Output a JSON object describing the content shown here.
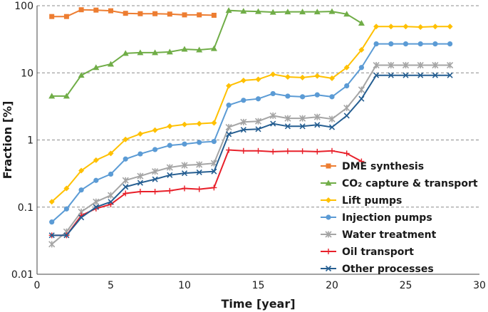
{
  "chart_data": {
    "type": "line",
    "title": "",
    "xlabel": "Time [year]",
    "ylabel": "Fraction [%]",
    "xlim": [
      0,
      30
    ],
    "ylim": [
      0.01,
      100
    ],
    "yscale": "log",
    "x_ticks": [
      "0",
      "5",
      "10",
      "15",
      "20",
      "25",
      "30"
    ],
    "y_ticks": [
      "0.01",
      "0.1",
      "1",
      "10",
      "100"
    ],
    "grid": "horizontal dashed",
    "legend_position": "center-right",
    "series": [
      {
        "name": "DME synthesis",
        "color": "#ed7d31",
        "marker": "square",
        "x": [
          1,
          2,
          3,
          4,
          5,
          6,
          7,
          8,
          9,
          10,
          11,
          12
        ],
        "values": [
          69,
          69,
          87,
          86,
          84,
          77,
          76,
          76,
          75,
          73,
          73,
          72
        ]
      },
      {
        "name": "CO₂ capture & transport",
        "color": "#70ad47",
        "marker": "triangle",
        "x": [
          1,
          2,
          3,
          4,
          5,
          6,
          7,
          8,
          9,
          10,
          11,
          12,
          13,
          14,
          15,
          16,
          17,
          18,
          19,
          20,
          21,
          22
        ],
        "values": [
          4.5,
          4.5,
          9.2,
          12,
          13.5,
          19.5,
          20,
          20,
          20.5,
          22.5,
          22,
          23,
          85,
          83,
          82,
          80,
          81,
          81,
          81,
          82,
          75,
          55
        ]
      },
      {
        "name": "Lift pumps",
        "color": "#ffc000",
        "marker": "diamond",
        "x": [
          1,
          2,
          3,
          4,
          5,
          6,
          7,
          8,
          9,
          10,
          11,
          12,
          13,
          14,
          15,
          16,
          17,
          18,
          19,
          20,
          21,
          22,
          23,
          24,
          25,
          26,
          27,
          28
        ],
        "values": [
          0.12,
          0.19,
          0.35,
          0.5,
          0.63,
          1.02,
          1.23,
          1.4,
          1.6,
          1.7,
          1.75,
          1.8,
          6.4,
          7.7,
          8,
          9.5,
          8.7,
          8.5,
          9,
          8.3,
          12,
          22,
          49,
          49,
          49,
          48,
          49,
          49
        ]
      },
      {
        "name": "Injection pumps",
        "color": "#5b9bd5",
        "marker": "circle",
        "x": [
          1,
          2,
          3,
          4,
          5,
          6,
          7,
          8,
          9,
          10,
          11,
          12,
          13,
          14,
          15,
          16,
          17,
          18,
          19,
          20,
          21,
          22,
          23,
          24,
          25,
          26,
          27,
          28
        ],
        "values": [
          0.06,
          0.094,
          0.18,
          0.25,
          0.31,
          0.52,
          0.62,
          0.72,
          0.83,
          0.87,
          0.92,
          0.95,
          3.3,
          3.9,
          4.1,
          4.9,
          4.5,
          4.4,
          4.7,
          4.4,
          6.4,
          12,
          27,
          27,
          27,
          27,
          27,
          27
        ]
      },
      {
        "name": "Water treatment",
        "color": "#a5a5a5",
        "marker": "asterisk",
        "x": [
          1,
          2,
          3,
          4,
          5,
          6,
          7,
          8,
          9,
          10,
          11,
          12,
          13,
          14,
          15,
          16,
          17,
          18,
          19,
          20,
          21,
          22,
          23,
          24,
          25,
          26,
          27,
          28
        ],
        "values": [
          0.028,
          0.043,
          0.085,
          0.12,
          0.15,
          0.25,
          0.29,
          0.34,
          0.39,
          0.42,
          0.43,
          0.45,
          1.55,
          1.85,
          1.9,
          2.3,
          2.1,
          2.1,
          2.2,
          2.05,
          3,
          5.6,
          13,
          13,
          13,
          13,
          13,
          13
        ]
      },
      {
        "name": "Oil transport",
        "color": "#e8202a",
        "marker": "plus",
        "x": [
          1,
          2,
          3,
          4,
          5,
          6,
          7,
          8,
          9,
          10,
          11,
          12,
          13,
          14,
          15,
          16,
          17,
          18,
          19,
          20,
          21,
          22
        ],
        "values": [
          0.038,
          0.038,
          0.075,
          0.095,
          0.11,
          0.16,
          0.17,
          0.17,
          0.175,
          0.19,
          0.185,
          0.195,
          0.71,
          0.69,
          0.69,
          0.67,
          0.68,
          0.68,
          0.67,
          0.69,
          0.63,
          0.48
        ]
      },
      {
        "name": "Other processes",
        "color": "#255e91",
        "marker": "cross",
        "x": [
          1,
          2,
          3,
          4,
          5,
          6,
          7,
          8,
          9,
          10,
          11,
          12,
          13,
          14,
          15,
          16,
          17,
          18,
          19,
          20,
          21,
          22,
          23,
          24,
          25,
          26,
          27,
          28
        ],
        "values": [
          0.038,
          0.038,
          0.07,
          0.1,
          0.12,
          0.2,
          0.23,
          0.26,
          0.3,
          0.32,
          0.33,
          0.34,
          1.22,
          1.42,
          1.45,
          1.75,
          1.6,
          1.6,
          1.68,
          1.55,
          2.3,
          4.1,
          9.2,
          9.2,
          9.2,
          9.2,
          9.2,
          9.2
        ]
      }
    ]
  }
}
